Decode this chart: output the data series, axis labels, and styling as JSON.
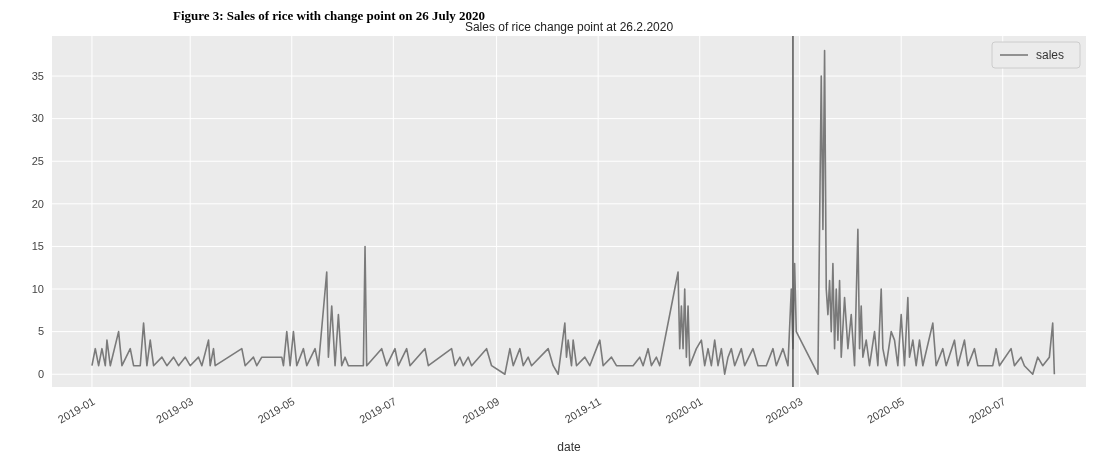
{
  "chart_data": {
    "type": "line",
    "title": "Sales of rice change point at 26.2.2020",
    "xlabel": "date",
    "annotations": [
      "Figure 3: Sales of rice with change point on 26 July 2020"
    ],
    "x": [
      "2019-01-01",
      "2019-01-03",
      "2019-01-05",
      "2019-01-07",
      "2019-01-09",
      "2019-01-10",
      "2019-01-12",
      "2019-01-17",
      "2019-01-19",
      "2019-01-24",
      "2019-01-26",
      "2019-01-30",
      "2019-02-01",
      "2019-02-03",
      "2019-02-05",
      "2019-02-07",
      "2019-02-12",
      "2019-02-15",
      "2019-02-19",
      "2019-02-22",
      "2019-02-26",
      "2019-03-01",
      "2019-03-06",
      "2019-03-08",
      "2019-03-12",
      "2019-03-13",
      "2019-03-15",
      "2019-03-16",
      "2019-04-01",
      "2019-04-03",
      "2019-04-08",
      "2019-04-10",
      "2019-04-13",
      "2019-04-25",
      "2019-04-26",
      "2019-04-28",
      "2019-04-30",
      "2019-05-02",
      "2019-05-04",
      "2019-05-08",
      "2019-05-10",
      "2019-05-15",
      "2019-05-17",
      "2019-05-22",
      "2019-05-23",
      "2019-05-25",
      "2019-05-27",
      "2019-05-29",
      "2019-05-31",
      "2019-06-02",
      "2019-06-04",
      "2019-06-13",
      "2019-06-14",
      "2019-06-15",
      "2019-06-24",
      "2019-06-27",
      "2019-07-02",
      "2019-07-04",
      "2019-07-09",
      "2019-07-11",
      "2019-07-20",
      "2019-07-22",
      "2019-08-05",
      "2019-08-07",
      "2019-08-10",
      "2019-08-12",
      "2019-08-15",
      "2019-08-17",
      "2019-08-26",
      "2019-08-29",
      "2019-09-06",
      "2019-09-09",
      "2019-09-11",
      "2019-09-15",
      "2019-09-17",
      "2019-09-20",
      "2019-09-22",
      "2019-10-02",
      "2019-10-05",
      "2019-10-08",
      "2019-10-12",
      "2019-10-13",
      "2019-10-14",
      "2019-10-16",
      "2019-10-17",
      "2019-10-19",
      "2019-10-24",
      "2019-10-27",
      "2019-10-31",
      "2019-11-02",
      "2019-11-04",
      "2019-11-09",
      "2019-11-12",
      "2019-11-22",
      "2019-11-26",
      "2019-11-28",
      "2019-12-01",
      "2019-12-03",
      "2019-12-06",
      "2019-12-08",
      "2019-12-19",
      "2019-12-20",
      "2019-12-21",
      "2019-12-22",
      "2019-12-23",
      "2019-12-24",
      "2019-12-25",
      "2019-12-26",
      "2019-12-30",
      "2020-01-02",
      "2020-01-04",
      "2020-01-06",
      "2020-01-08",
      "2020-01-10",
      "2020-01-12",
      "2020-01-14",
      "2020-01-16",
      "2020-01-18",
      "2020-01-20",
      "2020-01-22",
      "2020-01-26",
      "2020-01-28",
      "2020-02-02",
      "2020-02-05",
      "2020-02-10",
      "2020-02-14",
      "2020-02-16",
      "2020-02-20",
      "2020-02-23",
      "2020-02-25",
      "2020-02-26",
      "2020-02-27",
      "2020-02-28",
      "2020-03-12",
      "2020-03-14",
      "2020-03-15",
      "2020-03-16",
      "2020-03-17",
      "2020-03-18",
      "2020-03-19",
      "2020-03-20",
      "2020-03-21",
      "2020-03-22",
      "2020-03-23",
      "2020-03-24",
      "2020-03-25",
      "2020-03-26",
      "2020-03-28",
      "2020-03-30",
      "2020-04-01",
      "2020-04-03",
      "2020-04-05",
      "2020-04-06",
      "2020-04-07",
      "2020-04-08",
      "2020-04-10",
      "2020-04-12",
      "2020-04-15",
      "2020-04-17",
      "2020-04-19",
      "2020-04-20",
      "2020-04-22",
      "2020-04-25",
      "2020-04-27",
      "2020-04-29",
      "2020-05-01",
      "2020-05-03",
      "2020-05-05",
      "2020-05-06",
      "2020-05-08",
      "2020-05-10",
      "2020-05-12",
      "2020-05-14",
      "2020-05-20",
      "2020-05-22",
      "2020-05-26",
      "2020-05-28",
      "2020-06-02",
      "2020-06-04",
      "2020-06-08",
      "2020-06-10",
      "2020-06-14",
      "2020-06-16",
      "2020-06-25",
      "2020-06-27",
      "2020-06-29",
      "2020-07-06",
      "2020-07-08",
      "2020-07-12",
      "2020-07-14",
      "2020-07-19",
      "2020-07-22",
      "2020-07-25",
      "2020-07-29",
      "2020-07-31",
      "2020-08-01"
    ],
    "series": [
      {
        "name": "sales",
        "color": "#7a7a7a",
        "values": [
          1,
          3,
          1,
          3,
          1,
          4,
          1,
          5,
          1,
          3,
          1,
          1,
          6,
          1,
          4,
          1,
          2,
          1,
          2,
          1,
          2,
          1,
          2,
          1,
          4,
          1,
          3,
          1,
          3,
          1,
          2,
          1,
          2,
          2,
          1,
          5,
          1,
          5,
          1,
          3,
          1,
          3,
          1,
          12,
          2,
          8,
          1,
          7,
          1,
          2,
          1,
          1,
          15,
          1,
          3,
          1,
          3,
          1,
          3,
          1,
          3,
          1,
          3,
          1,
          2,
          1,
          2,
          1,
          3,
          1,
          0,
          3,
          1,
          3,
          1,
          2,
          1,
          3,
          1,
          0,
          6,
          2,
          4,
          1,
          4,
          1,
          2,
          1,
          3,
          4,
          1,
          2,
          1,
          1,
          2,
          1,
          3,
          1,
          2,
          1,
          12,
          3,
          8,
          3,
          10,
          2,
          8,
          1,
          3,
          4,
          1,
          3,
          1,
          4,
          1,
          3,
          0,
          2,
          3,
          1,
          3,
          1,
          3,
          1,
          1,
          3,
          1,
          3,
          1,
          10,
          3,
          13,
          5,
          0,
          35,
          17,
          38,
          10,
          7,
          11,
          5,
          13,
          3,
          10,
          4,
          11,
          2,
          9,
          3,
          7,
          1,
          17,
          3,
          8,
          2,
          4,
          1,
          5,
          1,
          10,
          3,
          1,
          5,
          4,
          1,
          7,
          1,
          9,
          2,
          4,
          1,
          4,
          1,
          6,
          1,
          3,
          1,
          4,
          1,
          4,
          1,
          3,
          1,
          1,
          3,
          1,
          3,
          1,
          2,
          1,
          0,
          2,
          1,
          2,
          6,
          0
        ]
      }
    ],
    "xlim": [
      "2018-12-08",
      "2020-08-20"
    ],
    "xticks": [
      {
        "value": "2019-01",
        "label": "2019-01"
      },
      {
        "value": "2019-03",
        "label": "2019-03"
      },
      {
        "value": "2019-05",
        "label": "2019-05"
      },
      {
        "value": "2019-07",
        "label": "2019-07"
      },
      {
        "value": "2019-09",
        "label": "2019-09"
      },
      {
        "value": "2019-11",
        "label": "2019-11"
      },
      {
        "value": "2020-01",
        "label": "2020-01"
      },
      {
        "value": "2020-03",
        "label": "2020-03"
      },
      {
        "value": "2020-05",
        "label": "2020-05"
      },
      {
        "value": "2020-07",
        "label": "2020-07"
      }
    ],
    "ylim": [
      -1.5,
      39.7
    ],
    "yticks": [
      0,
      5,
      10,
      15,
      20,
      25,
      30,
      35
    ],
    "ref_lines": [
      {
        "axis": "x",
        "value": "2020-02-26",
        "color": "#555555"
      }
    ],
    "grid": true,
    "legend": "top right"
  }
}
